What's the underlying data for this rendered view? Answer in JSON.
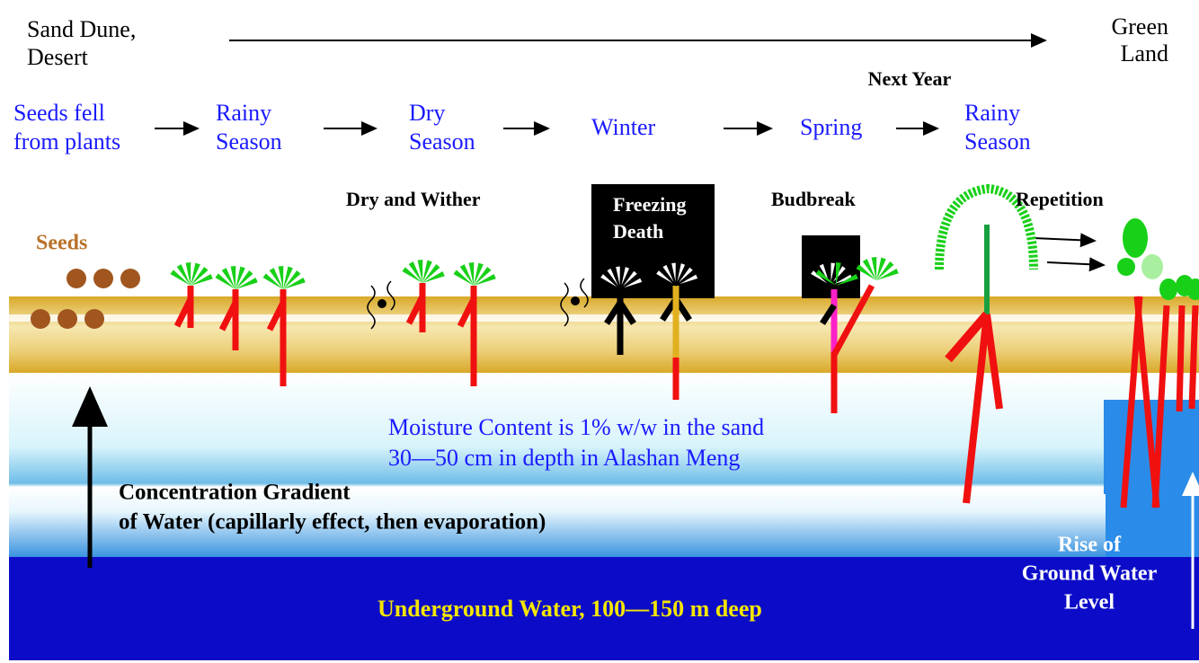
{
  "header": {
    "start": [
      "Sand Dune,",
      "Desert"
    ],
    "end": [
      "Green",
      "Land"
    ],
    "next_year": "Next Year"
  },
  "stages": [
    [
      "Seeds fell",
      "from plants"
    ],
    [
      "Rainy",
      "Season"
    ],
    [
      "Dry",
      "Season"
    ],
    [
      "Winter"
    ],
    [
      "Spring"
    ],
    [
      "Rainy",
      "Season"
    ]
  ],
  "events": {
    "seeds": "Seeds",
    "wither": "Dry and Wither",
    "freezing": [
      "Freezing",
      "Death"
    ],
    "budbreak": "Budbreak",
    "repetition": "Repetition"
  },
  "moisture": [
    "Moisture Content is 1% w/w in the sand",
    "30—50 cm in depth in Alashan Meng"
  ],
  "gradient": [
    "Concentration Gradient",
    "of Water (capillarly effect, then evaporation)"
  ],
  "underground": "Underground Water, 100—150 m deep",
  "rise": [
    "Rise of",
    "Ground Water",
    "Level"
  ]
}
